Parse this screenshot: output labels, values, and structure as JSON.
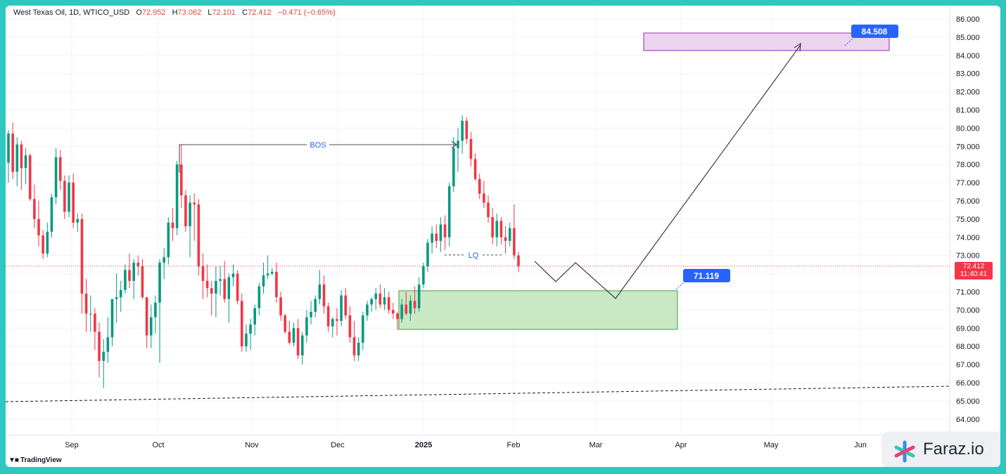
{
  "header": {
    "title": "West Texas Oil, 1D, WTICO_USD",
    "open_key": "O",
    "open": "72.952",
    "high_key": "H",
    "high": "73.062",
    "low_key": "L",
    "low": "72.101",
    "close_key": "C",
    "close": "72.412",
    "change": "−0.471 (−0.65%)"
  },
  "price_tag": {
    "price": "72.412",
    "countdown": "11:40:41"
  },
  "annotations": {
    "bos": "BOS",
    "lq": "LQ",
    "target_label": "84.508",
    "zone_label": "71.119"
  },
  "branding": {
    "tradingview": "TradingView",
    "watermark": "Faraz.io"
  },
  "colors": {
    "up": "#089981",
    "down": "#f23645",
    "zone_green": "#c9e8c4",
    "zone_purple": "#ecd3ee",
    "label_blue": "#2962ff"
  },
  "chart_data": {
    "type": "candlestick",
    "y_axis": {
      "range": [
        63.3,
        86.5
      ],
      "ticks": [
        "86.000",
        "85.000",
        "84.000",
        "83.000",
        "82.000",
        "81.000",
        "80.000",
        "79.000",
        "78.000",
        "77.000",
        "76.000",
        "75.000",
        "74.000",
        "73.000",
        "72.000",
        "71.000",
        "70.000",
        "69.000",
        "68.000",
        "67.000",
        "66.000",
        "65.000",
        "64.000"
      ]
    },
    "x_axis": {
      "ticks": [
        "Sep",
        "Oct",
        "Nov",
        "Dec",
        "2025",
        "Feb",
        "Mar",
        "Apr",
        "May",
        "Jun"
      ],
      "bold_tick": "2025"
    },
    "current_price": 72.412,
    "zones": [
      {
        "name": "demand",
        "from": 68.95,
        "to": 71.119
      },
      {
        "name": "target",
        "from": 84.3,
        "to": 85.25
      }
    ],
    "candles_ohlc": [
      [
        78.1,
        79.9,
        77.0,
        79.7
      ],
      [
        79.7,
        80.3,
        77.2,
        77.6
      ],
      [
        77.6,
        79.5,
        76.8,
        79.1
      ],
      [
        79.1,
        79.3,
        76.6,
        77.8
      ],
      [
        77.8,
        78.9,
        76.9,
        78.5
      ],
      [
        78.5,
        78.6,
        76.0,
        76.1
      ],
      [
        76.1,
        76.9,
        74.5,
        75.0
      ],
      [
        75.0,
        76.0,
        73.5,
        74.1
      ],
      [
        74.1,
        74.4,
        72.8,
        73.1
      ],
      [
        73.1,
        74.8,
        72.9,
        74.3
      ],
      [
        74.3,
        76.4,
        74.0,
        76.2
      ],
      [
        76.2,
        78.9,
        75.8,
        78.4
      ],
      [
        78.4,
        78.8,
        76.6,
        77.1
      ],
      [
        77.1,
        77.4,
        75.0,
        75.4
      ],
      [
        75.4,
        77.4,
        75.1,
        77.0
      ],
      [
        77.0,
        77.5,
        74.5,
        74.8
      ],
      [
        74.8,
        75.3,
        74.3,
        75.0
      ],
      [
        75.0,
        75.3,
        69.8,
        70.9
      ],
      [
        70.9,
        71.7,
        68.8,
        69.8
      ],
      [
        69.8,
        70.8,
        68.8,
        69.8
      ],
      [
        69.8,
        70.1,
        67.8,
        68.8
      ],
      [
        68.8,
        69.3,
        66.3,
        67.2
      ],
      [
        67.2,
        68.4,
        65.7,
        67.7
      ],
      [
        67.7,
        69.6,
        67.1,
        68.5
      ],
      [
        68.5,
        70.6,
        68.0,
        70.6
      ],
      [
        70.6,
        72.0,
        69.3,
        70.7
      ],
      [
        70.7,
        71.6,
        69.9,
        71.1
      ],
      [
        71.1,
        72.5,
        70.9,
        72.2
      ],
      [
        72.2,
        73.1,
        71.2,
        71.6
      ],
      [
        71.6,
        72.8,
        70.6,
        72.6
      ],
      [
        72.6,
        73.0,
        71.9,
        72.4
      ],
      [
        72.4,
        72.8,
        70.6,
        70.7
      ],
      [
        70.7,
        70.7,
        67.9,
        68.6
      ],
      [
        68.6,
        70.3,
        67.9,
        69.6
      ],
      [
        69.6,
        70.8,
        68.7,
        70.4
      ],
      [
        70.4,
        72.8,
        67.1,
        72.6
      ],
      [
        72.6,
        73.4,
        71.7,
        72.9
      ],
      [
        72.9,
        75.1,
        72.5,
        74.8
      ],
      [
        74.8,
        75.6,
        73.8,
        74.5
      ],
      [
        74.5,
        78.2,
        74.1,
        78.0
      ],
      [
        78.0,
        79.1,
        75.6,
        76.3
      ],
      [
        76.3,
        76.6,
        74.3,
        74.6
      ],
      [
        74.6,
        76.3,
        72.9,
        75.9
      ],
      [
        75.9,
        76.4,
        73.8,
        75.8
      ],
      [
        75.8,
        76.1,
        71.9,
        72.4
      ],
      [
        72.4,
        73.1,
        70.6,
        71.6
      ],
      [
        71.6,
        72.5,
        70.7,
        71.2
      ],
      [
        71.2,
        71.6,
        69.7,
        70.9
      ],
      [
        70.9,
        72.4,
        69.6,
        71.6
      ],
      [
        71.6,
        72.4,
        70.8,
        71.7
      ],
      [
        71.7,
        72.7,
        70.4,
        70.6
      ],
      [
        70.6,
        72.0,
        69.3,
        71.8
      ],
      [
        71.8,
        72.5,
        71.3,
        72.0
      ],
      [
        72.0,
        72.2,
        70.3,
        70.5
      ],
      [
        70.5,
        70.9,
        67.7,
        68.0
      ],
      [
        68.0,
        69.2,
        67.7,
        68.7
      ],
      [
        68.7,
        69.5,
        67.8,
        69.2
      ],
      [
        69.2,
        70.3,
        68.6,
        70.1
      ],
      [
        70.1,
        71.5,
        69.7,
        71.3
      ],
      [
        71.3,
        72.6,
        70.9,
        71.9
      ],
      [
        71.9,
        73.0,
        71.7,
        72.0
      ],
      [
        72.0,
        72.3,
        71.9,
        72.1
      ],
      [
        72.1,
        72.6,
        70.4,
        70.7
      ],
      [
        70.7,
        71.0,
        69.4,
        69.7
      ],
      [
        69.7,
        69.8,
        68.7,
        68.8
      ],
      [
        68.8,
        69.4,
        68.1,
        68.2
      ],
      [
        68.2,
        69.3,
        68.0,
        69.0
      ],
      [
        69.0,
        69.5,
        67.3,
        67.5
      ],
      [
        67.5,
        68.8,
        67.0,
        68.6
      ],
      [
        68.6,
        70.0,
        68.2,
        69.6
      ],
      [
        69.6,
        70.5,
        69.2,
        69.9
      ],
      [
        69.9,
        70.8,
        69.6,
        70.6
      ],
      [
        70.6,
        72.2,
        70.3,
        71.4
      ],
      [
        71.4,
        71.9,
        69.8,
        70.2
      ],
      [
        70.2,
        70.4,
        68.8,
        69.1
      ],
      [
        69.1,
        69.6,
        68.5,
        69.5
      ],
      [
        69.5,
        70.1,
        68.6,
        69.4
      ],
      [
        69.4,
        71.1,
        69.1,
        70.8
      ],
      [
        70.8,
        71.2,
        69.5,
        69.7
      ],
      [
        69.7,
        70.2,
        68.2,
        68.5
      ],
      [
        68.5,
        69.4,
        67.2,
        67.5
      ],
      [
        67.5,
        68.5,
        67.2,
        68.2
      ],
      [
        68.2,
        69.9,
        67.8,
        69.7
      ],
      [
        69.7,
        70.5,
        69.4,
        70.3
      ],
      [
        70.3,
        70.7,
        69.9,
        70.6
      ],
      [
        70.6,
        71.2,
        70.0,
        70.9
      ],
      [
        70.9,
        71.4,
        70.1,
        70.3
      ],
      [
        70.3,
        71.2,
        70.0,
        70.7
      ],
      [
        70.7,
        71.0,
        69.8,
        70.0
      ],
      [
        70.0,
        70.4,
        69.5,
        69.8
      ],
      [
        69.8,
        69.9,
        68.9,
        69.5
      ],
      [
        69.5,
        70.6,
        69.3,
        70.3
      ],
      [
        70.3,
        71.0,
        69.7,
        69.8
      ],
      [
        69.8,
        70.8,
        69.4,
        70.5
      ],
      [
        70.5,
        71.3,
        69.8,
        70.1
      ],
      [
        70.1,
        71.8,
        69.9,
        71.4
      ],
      [
        71.4,
        72.6,
        71.2,
        72.4
      ],
      [
        72.4,
        73.9,
        72.1,
        73.7
      ],
      [
        73.7,
        74.6,
        73.1,
        74.2
      ],
      [
        74.2,
        74.7,
        73.4,
        73.8
      ],
      [
        73.8,
        75.1,
        73.2,
        74.7
      ],
      [
        74.7,
        75.2,
        73.3,
        74.0
      ],
      [
        74.0,
        77.0,
        73.5,
        76.8
      ],
      [
        76.8,
        79.5,
        76.5,
        78.9
      ],
      [
        78.9,
        80.0,
        77.6,
        79.3
      ],
      [
        79.3,
        80.7,
        78.6,
        80.4
      ],
      [
        80.4,
        80.6,
        79.1,
        79.4
      ],
      [
        79.4,
        79.8,
        77.9,
        78.3
      ],
      [
        78.3,
        78.6,
        77.1,
        77.2
      ],
      [
        77.2,
        77.5,
        76.1,
        76.4
      ],
      [
        76.4,
        77.1,
        75.6,
        75.9
      ],
      [
        75.9,
        76.3,
        74.8,
        75.1
      ],
      [
        75.1,
        75.6,
        73.6,
        74.0
      ],
      [
        74.0,
        75.3,
        73.5,
        74.9
      ],
      [
        74.9,
        75.1,
        73.6,
        74.0
      ],
      [
        74.0,
        74.6,
        73.1,
        73.8
      ],
      [
        73.8,
        74.8,
        73.5,
        74.5
      ],
      [
        74.5,
        75.8,
        72.8,
        73.0
      ],
      [
        73.0,
        73.2,
        72.1,
        72.4
      ]
    ],
    "projection_path": [
      {
        "date": "Feb 5",
        "price": 72.7
      },
      {
        "date": "Feb 15",
        "price": 71.6
      },
      {
        "date": "Feb 22",
        "price": 72.6
      },
      {
        "date": "Mar 6",
        "price": 70.6
      },
      {
        "date": "May 12",
        "price": 84.6
      }
    ],
    "trendline_dashed": [
      {
        "date": "Jul 30",
        "price": 64.95
      },
      {
        "date": "Jun 30",
        "price": 65.8
      }
    ]
  }
}
